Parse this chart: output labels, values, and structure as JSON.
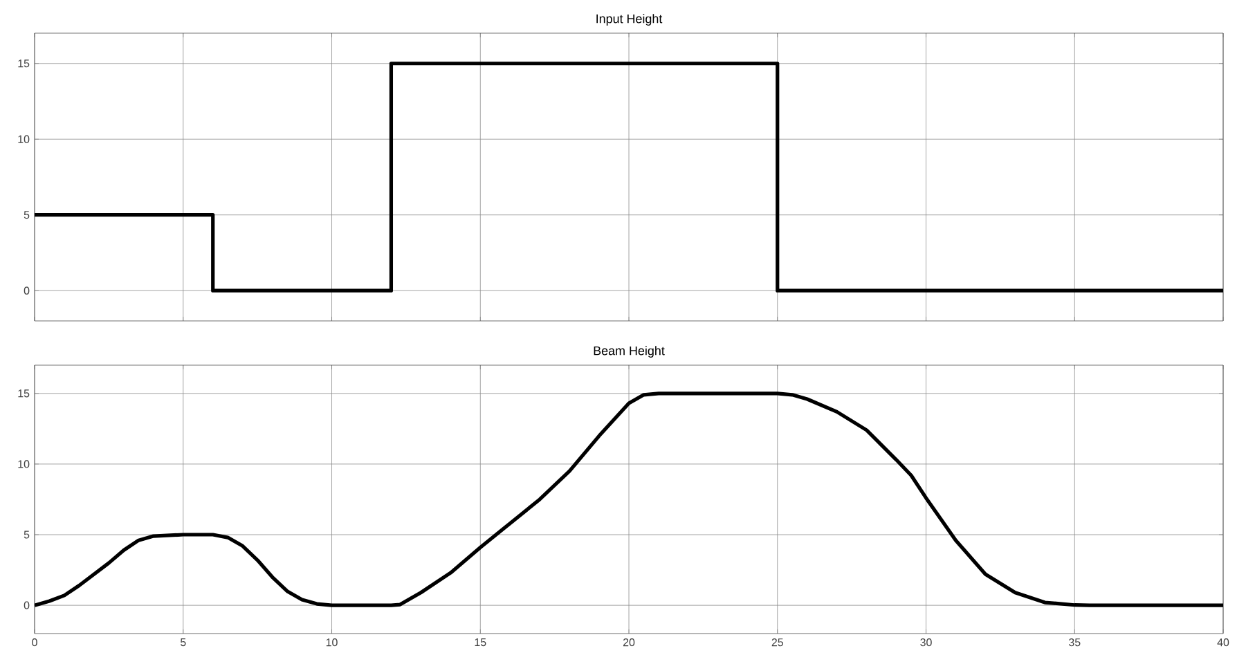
{
  "chart_data": [
    {
      "type": "step",
      "title": "Input Height",
      "x": [
        0,
        6,
        12,
        25,
        40
      ],
      "values": [
        5,
        0,
        15,
        0,
        0
      ],
      "color": "#000000",
      "xlim": [
        0,
        40
      ],
      "ylim": [
        -2,
        17
      ],
      "xticks": [
        0,
        5,
        10,
        15,
        20,
        25,
        30,
        35,
        40
      ],
      "yticks": [
        0,
        5,
        10,
        15
      ],
      "grid": true,
      "tick_labels": "y"
    },
    {
      "type": "line",
      "title": "Beam Height",
      "x": [
        0,
        0.5,
        1,
        1.5,
        2,
        2.5,
        3,
        3.5,
        4,
        5,
        6,
        6.5,
        7,
        7.5,
        8,
        8.5,
        9,
        9.5,
        10,
        12,
        12.3,
        13,
        14,
        15,
        16,
        17,
        18,
        19,
        20,
        20.5,
        21,
        25,
        25.5,
        26,
        27,
        28,
        29,
        29.5,
        30,
        31,
        32,
        33,
        34,
        35,
        35.5,
        40
      ],
      "values": [
        0,
        0.3,
        0.7,
        1.4,
        2.2,
        3.0,
        3.9,
        4.6,
        4.9,
        5,
        5,
        4.8,
        4.2,
        3.2,
        2.0,
        1.0,
        0.4,
        0.1,
        0,
        0,
        0.05,
        0.9,
        2.3,
        4.1,
        5.8,
        7.5,
        9.5,
        12,
        14.3,
        14.9,
        15,
        15,
        14.9,
        14.6,
        13.7,
        12.4,
        10.3,
        9.2,
        7.6,
        4.6,
        2.2,
        0.9,
        0.2,
        0.02,
        0,
        0
      ],
      "color": "#000000",
      "xlim": [
        0,
        40
      ],
      "ylim": [
        -2,
        17
      ],
      "xticks": [
        0,
        5,
        10,
        15,
        20,
        25,
        30,
        35,
        40
      ],
      "yticks": [
        0,
        5,
        10,
        15
      ],
      "grid": true
    }
  ]
}
